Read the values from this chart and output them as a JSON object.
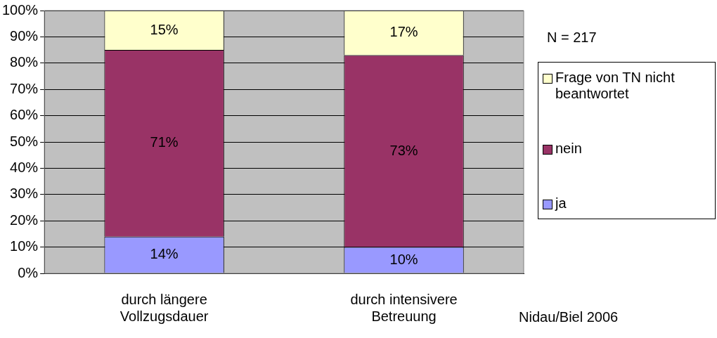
{
  "chart_data": {
    "type": "bar",
    "stacked": true,
    "categories": [
      "durch längere Vollzugsdauer",
      "durch intensivere Betreuung"
    ],
    "series": [
      {
        "name": "ja",
        "color": "#9999ff",
        "values": [
          14,
          10
        ],
        "value_labels": [
          "14%",
          "10%"
        ]
      },
      {
        "name": "nein",
        "color": "#993366",
        "values": [
          71,
          73
        ],
        "value_labels": [
          "71%",
          "73%"
        ]
      },
      {
        "name": "Frage von TN nicht beantwortet",
        "color": "#ffffcc",
        "values": [
          15,
          17
        ],
        "value_labels": [
          "15%",
          "17%"
        ]
      }
    ],
    "ylim": [
      0,
      100
    ],
    "yticks": [
      {
        "value": 0,
        "label": "0%"
      },
      {
        "value": 10,
        "label": "10%"
      },
      {
        "value": 20,
        "label": "20%"
      },
      {
        "value": 30,
        "label": "30%"
      },
      {
        "value": 40,
        "label": "40%"
      },
      {
        "value": 50,
        "label": "50%"
      },
      {
        "value": 60,
        "label": "60%"
      },
      {
        "value": 70,
        "label": "70%"
      },
      {
        "value": 80,
        "label": "80%"
      },
      {
        "value": 90,
        "label": "90%"
      },
      {
        "value": 100,
        "label": "100%"
      }
    ],
    "grid": "y",
    "legend": "right",
    "annotations": [
      "N = 217",
      "Nidau/Biel 2006"
    ]
  }
}
